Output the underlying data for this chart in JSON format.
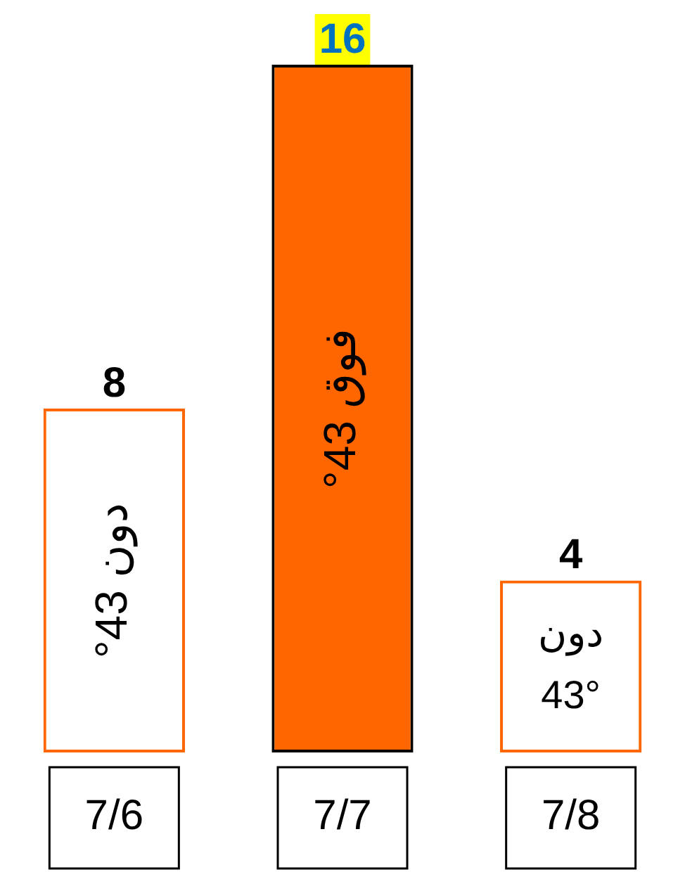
{
  "chart_data": {
    "type": "bar",
    "categories": [
      "7/6",
      "7/7",
      "7/8"
    ],
    "values": [
      8,
      16,
      4
    ],
    "color": "#ff6600",
    "data_labels": true,
    "annotations": [
      "دون 43°",
      "فوق 43°",
      "دون 43°"
    ],
    "grid": false,
    "legend": false
  }
}
